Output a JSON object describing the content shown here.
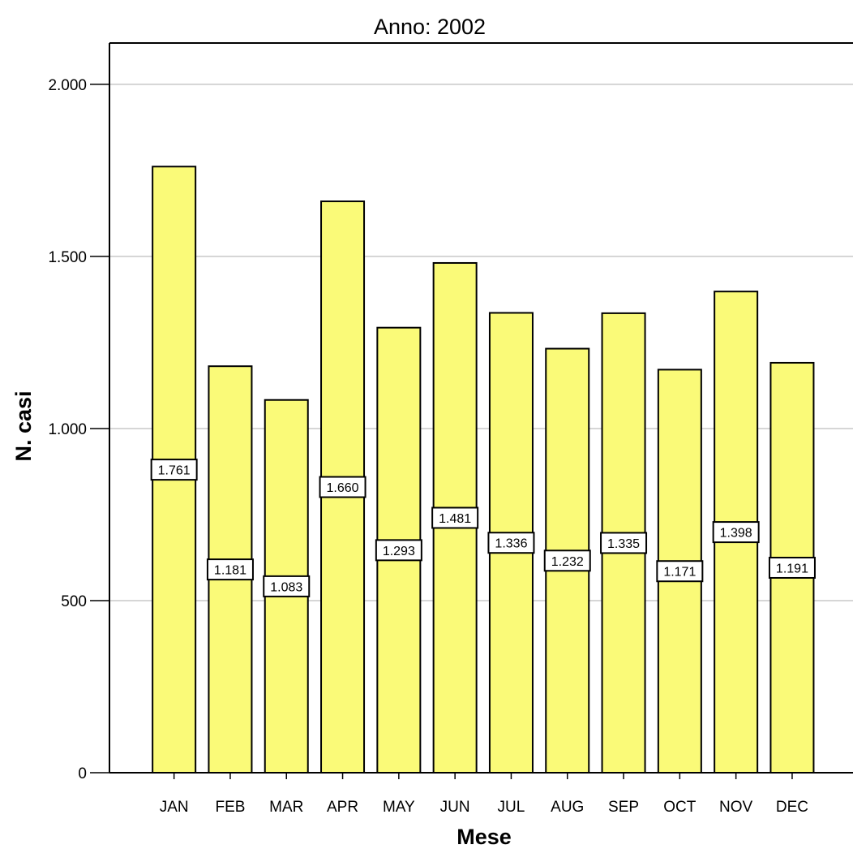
{
  "colors": {
    "bar_fill": "#fafa78",
    "bar_stroke": "#000000",
    "grid": "#c8c8c8",
    "axis": "#000000",
    "label_box_fill": "#ffffff"
  },
  "chart_data": {
    "type": "bar",
    "title": "Anno: 2002",
    "xlabel": "Mese",
    "ylabel": "N. casi",
    "categories": [
      "JAN",
      "FEB",
      "MAR",
      "APR",
      "MAY",
      "JUN",
      "JUL",
      "AUG",
      "SEP",
      "OCT",
      "NOV",
      "DEC"
    ],
    "values": [
      1761,
      1181,
      1083,
      1660,
      1293,
      1481,
      1336,
      1232,
      1335,
      1171,
      1398,
      1191
    ],
    "value_labels": [
      "1.761",
      "1.181",
      "1.083",
      "1.660",
      "1.293",
      "1.481",
      "1.336",
      "1.232",
      "1.335",
      "1.171",
      "1.398",
      "1.191"
    ],
    "yticks": [
      0,
      500,
      1000,
      1500,
      2000
    ],
    "ytick_labels": [
      "0",
      "500",
      "1.000",
      "1.500",
      "2.000"
    ],
    "ylim": [
      0,
      2120
    ],
    "grid": true,
    "legend": false
  }
}
